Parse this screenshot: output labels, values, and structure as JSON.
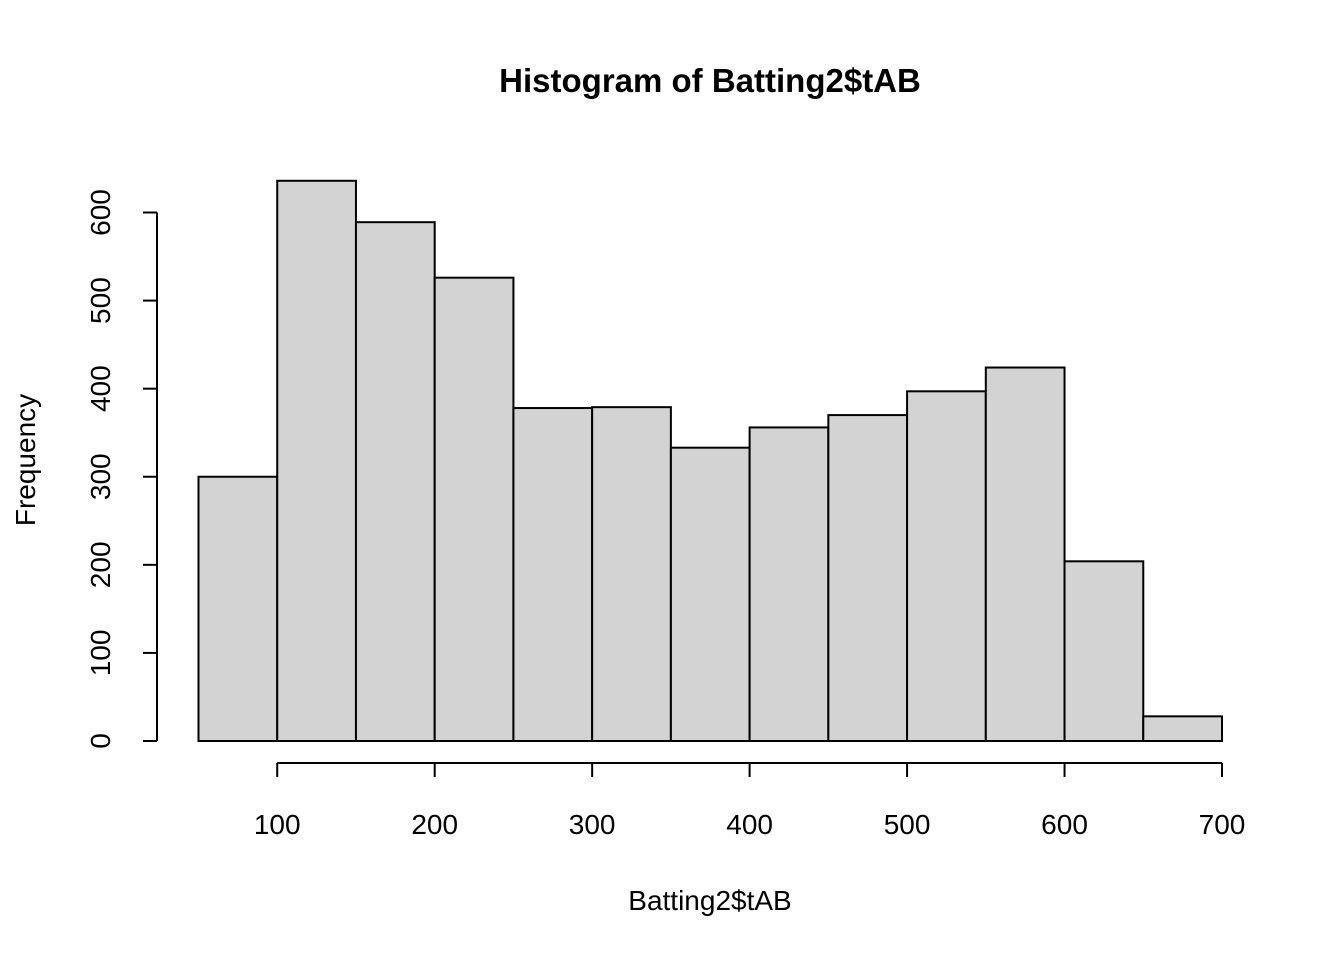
{
  "chart_data": {
    "type": "bar",
    "title": "Histogram of Batting2$tAB",
    "xlabel": "Batting2$tAB",
    "ylabel": "Frequency",
    "bin_edges": [
      50,
      100,
      150,
      200,
      250,
      300,
      350,
      400,
      450,
      500,
      550,
      600,
      650,
      700
    ],
    "values": [
      300,
      636,
      589,
      526,
      378,
      379,
      333,
      356,
      370,
      397,
      424,
      204,
      28
    ],
    "xlim": [
      50,
      700
    ],
    "ylim": [
      0,
      636
    ],
    "x_ticks": [
      100,
      200,
      300,
      400,
      500,
      600,
      700
    ],
    "x_tick_labels": [
      "100",
      "200",
      "300",
      "400",
      "500",
      "600",
      "700"
    ],
    "y_ticks": [
      0,
      100,
      200,
      300,
      400,
      500,
      600
    ],
    "y_tick_labels": [
      "0",
      "100",
      "200",
      "300",
      "400",
      "500",
      "600"
    ],
    "grid": false,
    "legend": "none",
    "bar_color": "#d3d3d3",
    "edge_color": "#000000"
  }
}
